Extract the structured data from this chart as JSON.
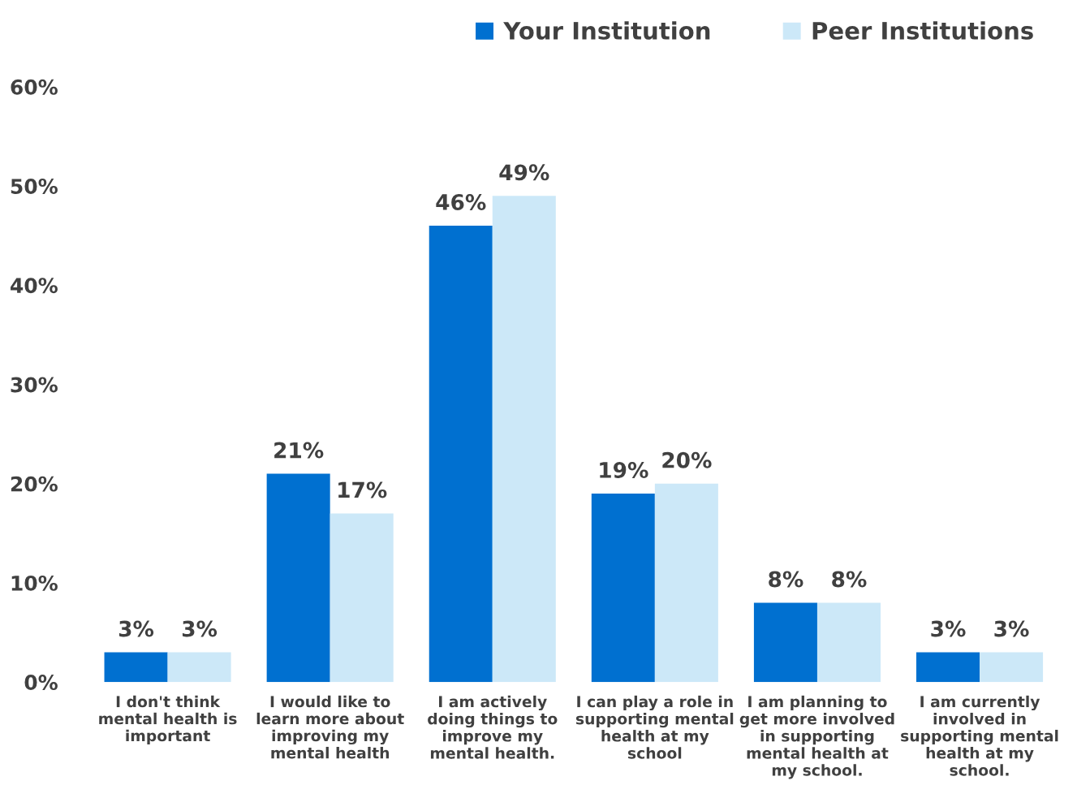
{
  "chart_data": {
    "type": "bar",
    "categories": [
      "I don't think\nmental health is\nimportant",
      "I would like to\nlearn more about\nimproving my\nmental health",
      "I am actively\ndoing things to\nimprove my\nmental health.",
      "I can play a role in\nsupporting mental\nhealth at my\nschool",
      "I am planning to\nget more involved\nin supporting\nmental health at\nmy school.",
      "I am currently\ninvolved in\nsupporting mental\nhealth at my\nschool."
    ],
    "series": [
      {
        "name": "Your Institution",
        "color": "#0070d0",
        "values": [
          3,
          21,
          46,
          19,
          8,
          3
        ],
        "value_labels": [
          "3%",
          "21%",
          "46%",
          "19%",
          "8%",
          "3%"
        ]
      },
      {
        "name": "Peer Institutions",
        "color": "#cce8f8",
        "values": [
          3,
          17,
          49,
          20,
          8,
          3
        ],
        "value_labels": [
          "3%",
          "17%",
          "49%",
          "20%",
          "8%",
          "3%"
        ]
      }
    ],
    "ylim": [
      0,
      60
    ],
    "yticks": [
      {
        "value": 0,
        "label": "0%"
      },
      {
        "value": 10,
        "label": "10%"
      },
      {
        "value": 20,
        "label": "20%"
      },
      {
        "value": 30,
        "label": "30%"
      },
      {
        "value": 40,
        "label": "40%"
      },
      {
        "value": 50,
        "label": "50%"
      },
      {
        "value": 60,
        "label": "60%"
      }
    ],
    "grid": false,
    "legend": "top right"
  }
}
